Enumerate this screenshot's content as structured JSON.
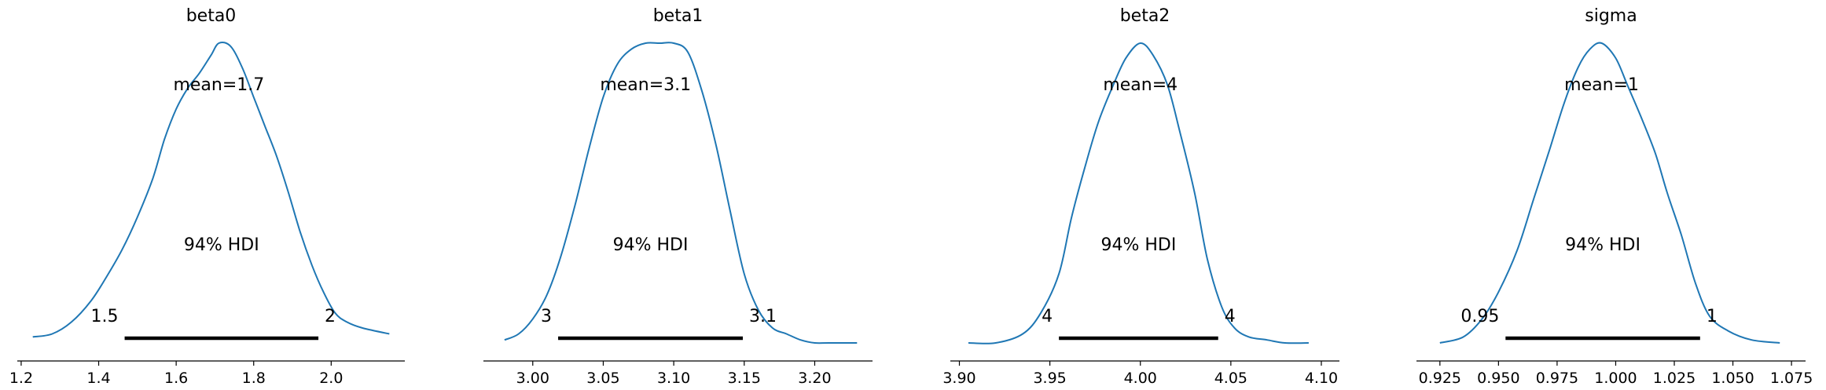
{
  "chart_data": [
    {
      "type": "line",
      "title": "beta0",
      "xlim": [
        1.19,
        2.19
      ],
      "xticks": [
        1.2,
        1.4,
        1.6,
        1.8,
        2.0
      ],
      "xtick_labels": [
        "1.2",
        "1.4",
        "1.6",
        "1.8",
        "2.0"
      ],
      "series": [
        {
          "x": [
            1.23,
            1.28,
            1.33,
            1.38,
            1.42,
            1.46,
            1.5,
            1.54,
            1.57,
            1.6,
            1.63,
            1.66,
            1.69,
            1.71,
            1.74,
            1.77,
            1.8,
            1.83,
            1.86,
            1.89,
            1.92,
            1.95,
            1.98,
            2.01,
            2.04,
            2.08,
            2.15
          ],
          "y": [
            0.02,
            0.03,
            0.07,
            0.14,
            0.22,
            0.31,
            0.42,
            0.55,
            0.68,
            0.78,
            0.85,
            0.9,
            0.96,
            1.0,
            0.99,
            0.92,
            0.82,
            0.72,
            0.62,
            0.5,
            0.37,
            0.26,
            0.17,
            0.1,
            0.07,
            0.05,
            0.03
          ]
        }
      ],
      "mean_label": "mean=1.7",
      "hdi_label": "94% HDI",
      "hdi": [
        1.467,
        1.967
      ],
      "hdi_low_label": "1.5",
      "hdi_high_label": "2"
    },
    {
      "type": "line",
      "title": "beta1",
      "xlim": [
        2.965,
        3.241
      ],
      "xticks": [
        3.0,
        3.05,
        3.1,
        3.15,
        3.2
      ],
      "xtick_labels": [
        "3.00",
        "3.05",
        "3.10",
        "3.15",
        "3.20"
      ],
      "series": [
        {
          "x": [
            2.98,
            2.99,
            3.0,
            3.01,
            3.02,
            3.03,
            3.04,
            3.05,
            3.06,
            3.07,
            3.08,
            3.09,
            3.1,
            3.11,
            3.12,
            3.13,
            3.14,
            3.15,
            3.16,
            3.17,
            3.18,
            3.19,
            3.2,
            3.21,
            3.23
          ],
          "y": [
            0.01,
            0.03,
            0.08,
            0.16,
            0.29,
            0.46,
            0.65,
            0.82,
            0.93,
            0.98,
            1.0,
            1.0,
            1.0,
            0.97,
            0.84,
            0.66,
            0.44,
            0.23,
            0.11,
            0.05,
            0.03,
            0.01,
            0.0,
            0.0,
            0.0
          ]
        }
      ],
      "mean_label": "mean=3.1",
      "hdi_label": "94% HDI",
      "hdi": [
        3.018,
        3.149
      ],
      "hdi_low_label": "3",
      "hdi_high_label": "3.1"
    },
    {
      "type": "line",
      "title": "beta2",
      "xlim": [
        3.895,
        4.11
      ],
      "xticks": [
        3.9,
        3.95,
        4.0,
        4.05,
        4.1
      ],
      "xtick_labels": [
        "3.90",
        "3.95",
        "4.00",
        "4.05",
        "4.10"
      ],
      "series": [
        {
          "x": [
            3.905,
            3.92,
            3.935,
            3.945,
            3.955,
            3.962,
            3.97,
            3.977,
            3.985,
            3.992,
            4.0,
            4.007,
            4.015,
            4.022,
            4.03,
            4.037,
            4.045,
            4.052,
            4.06,
            4.07,
            4.08,
            4.093
          ],
          "y": [
            0.0,
            0.0,
            0.03,
            0.1,
            0.23,
            0.42,
            0.6,
            0.74,
            0.86,
            0.95,
            1.0,
            0.96,
            0.86,
            0.7,
            0.5,
            0.28,
            0.12,
            0.05,
            0.02,
            0.01,
            0.0,
            0.0
          ]
        }
      ],
      "mean_label": "mean=4",
      "hdi_label": "94% HDI",
      "hdi": [
        3.955,
        4.043
      ],
      "hdi_low_label": "4",
      "hdi_high_label": "4"
    },
    {
      "type": "line",
      "title": "sigma",
      "xlim": [
        0.915,
        1.081
      ],
      "xticks": [
        0.925,
        0.95,
        0.975,
        1.0,
        1.025,
        1.05,
        1.075
      ],
      "xtick_labels": [
        "0.925",
        "0.950",
        "0.975",
        "1.000",
        "1.025",
        "1.050",
        "1.075"
      ],
      "series": [
        {
          "x": [
            0.925,
            0.935,
            0.943,
            0.95,
            0.958,
            0.965,
            0.972,
            0.978,
            0.984,
            0.989,
            0.994,
            1.0,
            1.005,
            1.011,
            1.017,
            1.022,
            1.028,
            1.034,
            1.04,
            1.048,
            1.058,
            1.07
          ],
          "y": [
            0.0,
            0.02,
            0.08,
            0.17,
            0.31,
            0.48,
            0.65,
            0.8,
            0.92,
            0.98,
            1.0,
            0.95,
            0.86,
            0.75,
            0.63,
            0.5,
            0.36,
            0.2,
            0.09,
            0.04,
            0.01,
            0.0
          ]
        }
      ],
      "mean_label": "mean=1",
      "hdi_label": "94% HDI",
      "hdi": [
        0.953,
        1.036
      ],
      "hdi_low_label": "0.95",
      "hdi_high_label": "1"
    }
  ],
  "colors": {
    "line": "#1f77b4",
    "hdi_bar": "#000000",
    "axis": "#000000"
  }
}
